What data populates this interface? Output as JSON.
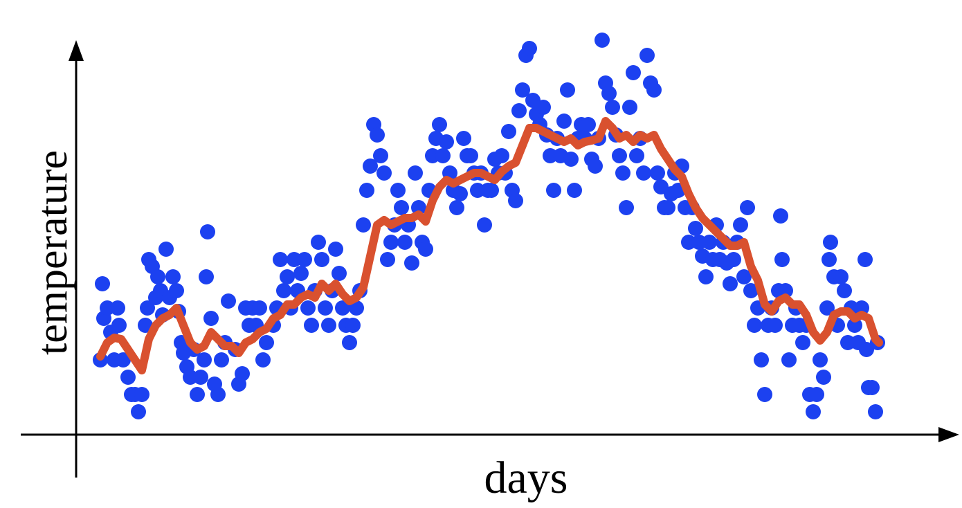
{
  "chart_data": {
    "type": "scatter",
    "xlabel": "days",
    "ylabel": "temperature",
    "xlim": [
      110,
      1360
    ],
    "ylim": [
      0,
      568
    ],
    "series": [
      {
        "type": "scatter",
        "color": "#1c41f0",
        "x": [
          145,
          148,
          150,
          155,
          160,
          165,
          170,
          172,
          178,
          185,
          190,
          195,
          200,
          205,
          210,
          213,
          215,
          220,
          225,
          228,
          232,
          235,
          240,
          245,
          250,
          255,
          258,
          262,
          265,
          270,
          275,
          280,
          285,
          290,
          295,
          298,
          300,
          305,
          310,
          315,
          320,
          325,
          330,
          340,
          345,
          350,
          355,
          360,
          365,
          370,
          375,
          380,
          385,
          395,
          400,
          405,
          410,
          415,
          420,
          425,
          430,
          435,
          440,
          445,
          450,
          455,
          460,
          465,
          470,
          475,
          480,
          485,
          490,
          495,
          500,
          505,
          510,
          515,
          520,
          525,
          530,
          535,
          540,
          545,
          550,
          555,
          560,
          565,
          570,
          575,
          580,
          585,
          590,
          595,
          600,
          605,
          610,
          615,
          620,
          625,
          630,
          635,
          640,
          645,
          650,
          655,
          660,
          665,
          670,
          675,
          680,
          685,
          690,
          695,
          700,
          705,
          710,
          715,
          720,
          725,
          730,
          735,
          740,
          745,
          750,
          755,
          760,
          765,
          770,
          775,
          780,
          785,
          790,
          795,
          800,
          805,
          810,
          815,
          820,
          825,
          830,
          835,
          840,
          845,
          850,
          855,
          860,
          865,
          870,
          875,
          880,
          885,
          890,
          895,
          900,
          905,
          910,
          915,
          920,
          925,
          930,
          935,
          940,
          945,
          950,
          955,
          960,
          965,
          970,
          975,
          980,
          985,
          990,
          995,
          1000,
          1005,
          1010,
          1015,
          1020,
          1025,
          1030,
          1035,
          1040,
          1045,
          1050,
          1055,
          1060,
          1065,
          1070,
          1075,
          1080,
          1085,
          1090,
          1095,
          1100,
          1105,
          1110,
          1115,
          1120,
          1125,
          1128,
          1130,
          1135,
          1140,
          1145,
          1150,
          1155,
          1160,
          1165,
          1170,
          1175,
          1180,
          1185,
          1190,
          1195,
          1198,
          1200,
          1205,
          1210,
          1215,
          1220,
          1225,
          1230,
          1235,
          1240,
          1245,
          1250,
          1252,
          1255,
          1260,
          1265,
          1268
        ],
        "values": [
          108,
          218,
          168,
          183,
          148,
          108,
          183,
          158,
          108,
          83,
          58,
          58,
          33,
          58,
          158,
          183,
          253,
          243,
          198,
          228,
          208,
          173,
          268,
          198,
          228,
          208,
          178,
          133,
          118,
          98,
          83,
          123,
          58,
          83,
          108,
          228,
          293,
          168,
          73,
          58,
          108,
          133,
          193,
          123,
          73,
          88,
          183,
          158,
          183,
          158,
          183,
          108,
          133,
          158,
          183,
          253,
          208,
          228,
          183,
          253,
          208,
          233,
          253,
          183,
          158,
          208,
          278,
          253,
          183,
          158,
          208,
          268,
          233,
          183,
          158,
          133,
          158,
          183,
          208,
          303,
          353,
          388,
          448,
          433,
          403,
          378,
          253,
          278,
          303,
          353,
          328,
          278,
          303,
          248,
          378,
          328,
          278,
          268,
          353,
          403,
          428,
          448,
          403,
          423,
          378,
          353,
          328,
          348,
          428,
          403,
          403,
          378,
          353,
          378,
          303,
          353,
          353,
          398,
          378,
          403,
          378,
          438,
          353,
          338,
          468,
          498,
          548,
          558,
          483,
          463,
          448,
          473,
          433,
          403,
          353,
          428,
          403,
          453,
          498,
          398,
          353,
          428,
          448,
          428,
          448,
          398,
          388,
          428,
          570,
          508,
          493,
          473,
          433,
          403,
          378,
          328,
          473,
          523,
          403,
          428,
          378,
          548,
          508,
          498,
          378,
          358,
          328,
          328,
          348,
          378,
          353,
          388,
          328,
          278,
          328,
          298,
          278,
          258,
          228,
          278,
          253,
          303,
          253,
          278,
          248,
          218,
          253,
          278,
          303,
          228,
          328,
          208,
          158,
          183,
          108,
          58,
          158,
          183,
          158,
          208,
          316,
          253,
          208,
          108,
          158,
          183,
          158,
          133,
          158,
          58,
          33,
          58,
          108,
          83,
          183,
          253,
          278,
          228,
          158,
          228,
          208,
          133,
          183,
          158,
          133,
          183,
          253,
          123,
          68,
          68,
          33,
          133
        ]
      },
      {
        "type": "line",
        "color": "#d9512f",
        "x": [
          145,
          155,
          165,
          175,
          185,
          195,
          205,
          215,
          225,
          235,
          245,
          255,
          265,
          275,
          285,
          295,
          305,
          315,
          325,
          335,
          345,
          355,
          365,
          375,
          385,
          395,
          405,
          415,
          425,
          435,
          445,
          455,
          465,
          475,
          485,
          495,
          505,
          515,
          525,
          535,
          545,
          555,
          565,
          575,
          585,
          595,
          605,
          615,
          625,
          635,
          645,
          655,
          665,
          675,
          685,
          695,
          705,
          715,
          725,
          735,
          745,
          755,
          765,
          775,
          785,
          795,
          805,
          815,
          825,
          835,
          845,
          855,
          865,
          875,
          885,
          895,
          905,
          915,
          925,
          935,
          945,
          955,
          965,
          975,
          985,
          995,
          1005,
          1015,
          1025,
          1035,
          1045,
          1055,
          1065,
          1075,
          1085,
          1095,
          1105,
          1115,
          1125,
          1135,
          1145,
          1155,
          1165,
          1175,
          1185,
          1195,
          1205,
          1215,
          1225,
          1235,
          1245,
          1255,
          1265,
          1270
        ],
        "values": [
          113,
          133,
          140,
          138,
          123,
          108,
          93,
          138,
          158,
          168,
          173,
          183,
          158,
          133,
          123,
          128,
          148,
          138,
          128,
          128,
          118,
          133,
          138,
          148,
          153,
          168,
          173,
          188,
          188,
          198,
          203,
          198,
          218,
          208,
          218,
          203,
          193,
          198,
          213,
          258,
          303,
          310,
          303,
          308,
          313,
          313,
          318,
          308,
          338,
          358,
          368,
          363,
          368,
          373,
          378,
          378,
          373,
          368,
          380,
          388,
          393,
          418,
          443,
          443,
          438,
          433,
          428,
          423,
          428,
          418,
          423,
          425,
          428,
          453,
          443,
          428,
          433,
          423,
          433,
          428,
          433,
          413,
          398,
          383,
          373,
          348,
          328,
          313,
          303,
          293,
          283,
          273,
          273,
          278,
          243,
          223,
          188,
          178,
          193,
          198,
          188,
          188,
          173,
          148,
          136,
          148,
          173,
          178,
          178,
          168,
          173,
          168,
          138,
          133
        ]
      }
    ]
  }
}
